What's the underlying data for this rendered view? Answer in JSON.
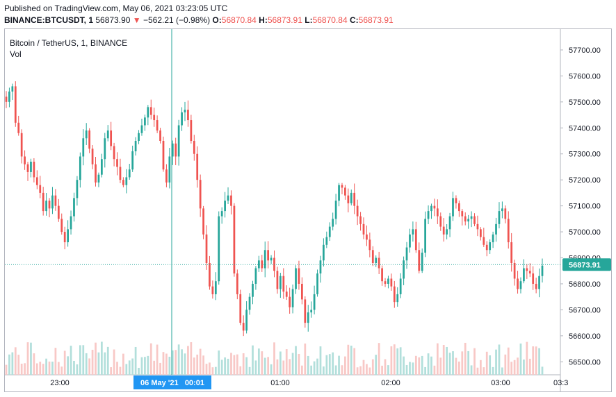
{
  "header": {
    "published": "Published on TradingView.com, May 06, 2021 03:23:05 UTC"
  },
  "quote": {
    "symbol": "BINANCE:BTCUSDT, 1",
    "last": "56873.90",
    "arrow": "▼",
    "change": "−562.21 (−0.98%)",
    "o_label": "O:",
    "o_value": "56870.84",
    "h_label": "H:",
    "h_value": "56873.91",
    "l_label": "L:",
    "l_value": "56870.84",
    "c_label": "C:",
    "c_value": "56873.91"
  },
  "legend": {
    "title": "Bitcoin / TetherUS, 1, BINANCE",
    "vol": "Vol"
  },
  "colors": {
    "up": "#26a69a",
    "down": "#ef5350",
    "up_vol": "#b2dfdb",
    "down_vol": "#f8c8c6",
    "price_line": "#26a69a",
    "crosshair": "#26a69a",
    "time_badge": "#2196f3"
  },
  "chart_data": {
    "type": "candlestick",
    "title": "Bitcoin / TetherUS, 1, BINANCE",
    "ylim": [
      56450,
      57780
    ],
    "yticks": [
      56500,
      56600,
      56700,
      56800,
      56900,
      57000,
      57100,
      57200,
      57300,
      57400,
      57500,
      57600,
      57700
    ],
    "ytick_labels": [
      "56500.00",
      "56600.00",
      "56700.00",
      "56800.00",
      "56900.00",
      "57000.00",
      "57100.00",
      "57200.00",
      "57300.00",
      "57400.00",
      "57500.00",
      "57600.00",
      "57700.00"
    ],
    "xtick_labels": [
      "23:00",
      "01:00",
      "02:00",
      "03:00",
      "03:3"
    ],
    "x_highlight": "06 May '21   00:01",
    "last_price": 56873.91,
    "last_price_label": "56873.91",
    "close_path": [
      57500,
      57540,
      57560,
      57420,
      57380,
      57290,
      57260,
      57230,
      57270,
      57210,
      57180,
      57150,
      57080,
      57120,
      57090,
      57140,
      57100,
      57050,
      57000,
      56960,
      57010,
      57060,
      57130,
      57200,
      57290,
      57360,
      57390,
      57320,
      57260,
      57190,
      57220,
      57280,
      57360,
      57390,
      57330,
      57280,
      57250,
      57200,
      57180,
      57210,
      57240,
      57310,
      57350,
      57380,
      57410,
      57440,
      57480,
      57450,
      57430,
      57390,
      57350,
      57240,
      57190,
      57290,
      57340,
      57290,
      57410,
      57460,
      57470,
      57430,
      57350,
      57300,
      57200,
      57090,
      56990,
      56880,
      56790,
      56760,
      56810,
      57060,
      57080,
      57120,
      57140,
      57100,
      56840,
      56760,
      56650,
      56620,
      56700,
      56750,
      56800,
      56860,
      56890,
      56860,
      56930,
      56890,
      56900,
      56850,
      56780,
      56830,
      56770,
      56750,
      56710,
      56780,
      56860,
      56800,
      56740,
      56650,
      56690,
      56700,
      56760,
      56840,
      56890,
      56950,
      56980,
      57020,
      57050,
      57120,
      57180,
      57170,
      57140,
      57110,
      57150,
      57100,
      57060,
      57030,
      56990,
      56970,
      56930,
      56880,
      56900,
      56860,
      56810,
      56800,
      56820,
      56790,
      56730,
      56760,
      56820,
      56890,
      56940,
      56990,
      57010,
      56930,
      56850,
      56920,
      57050,
      57080,
      57100,
      57090,
      57060,
      57020,
      56990,
      57010,
      57060,
      57130,
      57110,
      57080,
      57060,
      57040,
      57050,
      57060,
      57030,
      57010,
      56980,
      56950,
      56930,
      56960,
      56990,
      57030,
      57080,
      57090,
      57050,
      56960,
      56880,
      56820,
      56780,
      56810,
      56860,
      56850,
      56840,
      56800,
      56780,
      56830,
      56870
    ]
  }
}
